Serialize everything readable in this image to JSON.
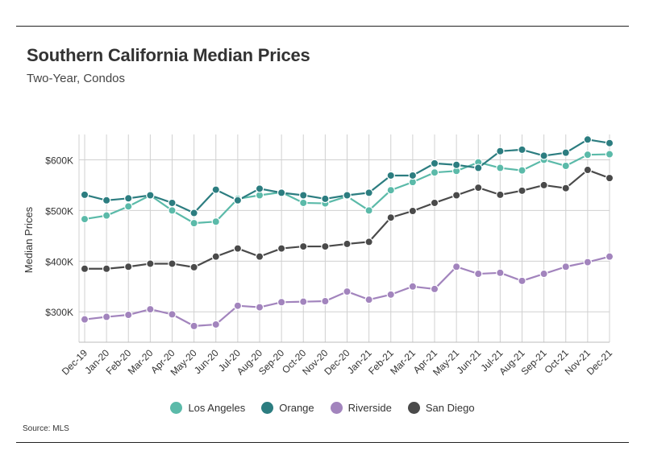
{
  "header": {
    "title": "Southern California Median Prices",
    "subtitle": "Two-Year, Condos"
  },
  "footer": {
    "source": "Source:  MLS"
  },
  "chart_data": {
    "type": "line",
    "title": "Southern California Median Prices",
    "subtitle": "Two-Year, Condos",
    "xlabel": "",
    "ylabel": "Median Prices",
    "categories": [
      "Dec-19",
      "Jan-20",
      "Feb-20",
      "Mar-20",
      "Apr-20",
      "May-20",
      "Jun-20",
      "Jul-20",
      "Aug-20",
      "Sep-20",
      "Oct-20",
      "Nov-20",
      "Dec-20",
      "Jan-21",
      "Feb-21",
      "Mar-21",
      "Apr-21",
      "May-21",
      "Jun-21",
      "Jul-21",
      "Aug-21",
      "Sep-21",
      "Oct-21",
      "Nov-21",
      "Dec-21"
    ],
    "ylim": [
      240000,
      650000
    ],
    "yticks": [
      300000,
      400000,
      500000,
      600000
    ],
    "ytick_labels": [
      "$300K",
      "$400K",
      "$500K",
      "$600K"
    ],
    "grid": {
      "vertical": true,
      "horizontal": true
    },
    "legend_position": "bottom",
    "series": [
      {
        "name": "Los Angeles",
        "color": "#5bbaa9",
        "values": [
          483000,
          490000,
          508000,
          530000,
          500000,
          475000,
          478000,
          523000,
          530000,
          536000,
          515000,
          514000,
          528000,
          500000,
          540000,
          556000,
          575000,
          578000,
          595000,
          584000,
          579000,
          600000,
          588000,
          610000,
          611000
        ]
      },
      {
        "name": "Orange",
        "color": "#2c7d80",
        "values": [
          531000,
          520000,
          524000,
          530000,
          515000,
          495000,
          541000,
          520000,
          543000,
          535000,
          530000,
          523000,
          530000,
          535000,
          569000,
          569000,
          593000,
          590000,
          584000,
          617000,
          620000,
          608000,
          614000,
          640000,
          633000
        ]
      },
      {
        "name": "Riverside",
        "color": "#a284bd",
        "values": [
          285000,
          290000,
          294000,
          305000,
          295000,
          272000,
          275000,
          312000,
          309000,
          319000,
          320000,
          321000,
          340000,
          324000,
          334000,
          350000,
          345000,
          389000,
          375000,
          377000,
          361000,
          375000,
          389000,
          398000,
          409000
        ]
      },
      {
        "name": "San Diego",
        "color": "#4a4a4a",
        "values": [
          385000,
          385000,
          389000,
          395000,
          395000,
          388000,
          409000,
          425000,
          409000,
          425000,
          429000,
          429000,
          434000,
          438000,
          486000,
          499000,
          515000,
          530000,
          545000,
          531000,
          539000,
          550000,
          544000,
          580000,
          564000
        ]
      }
    ]
  }
}
